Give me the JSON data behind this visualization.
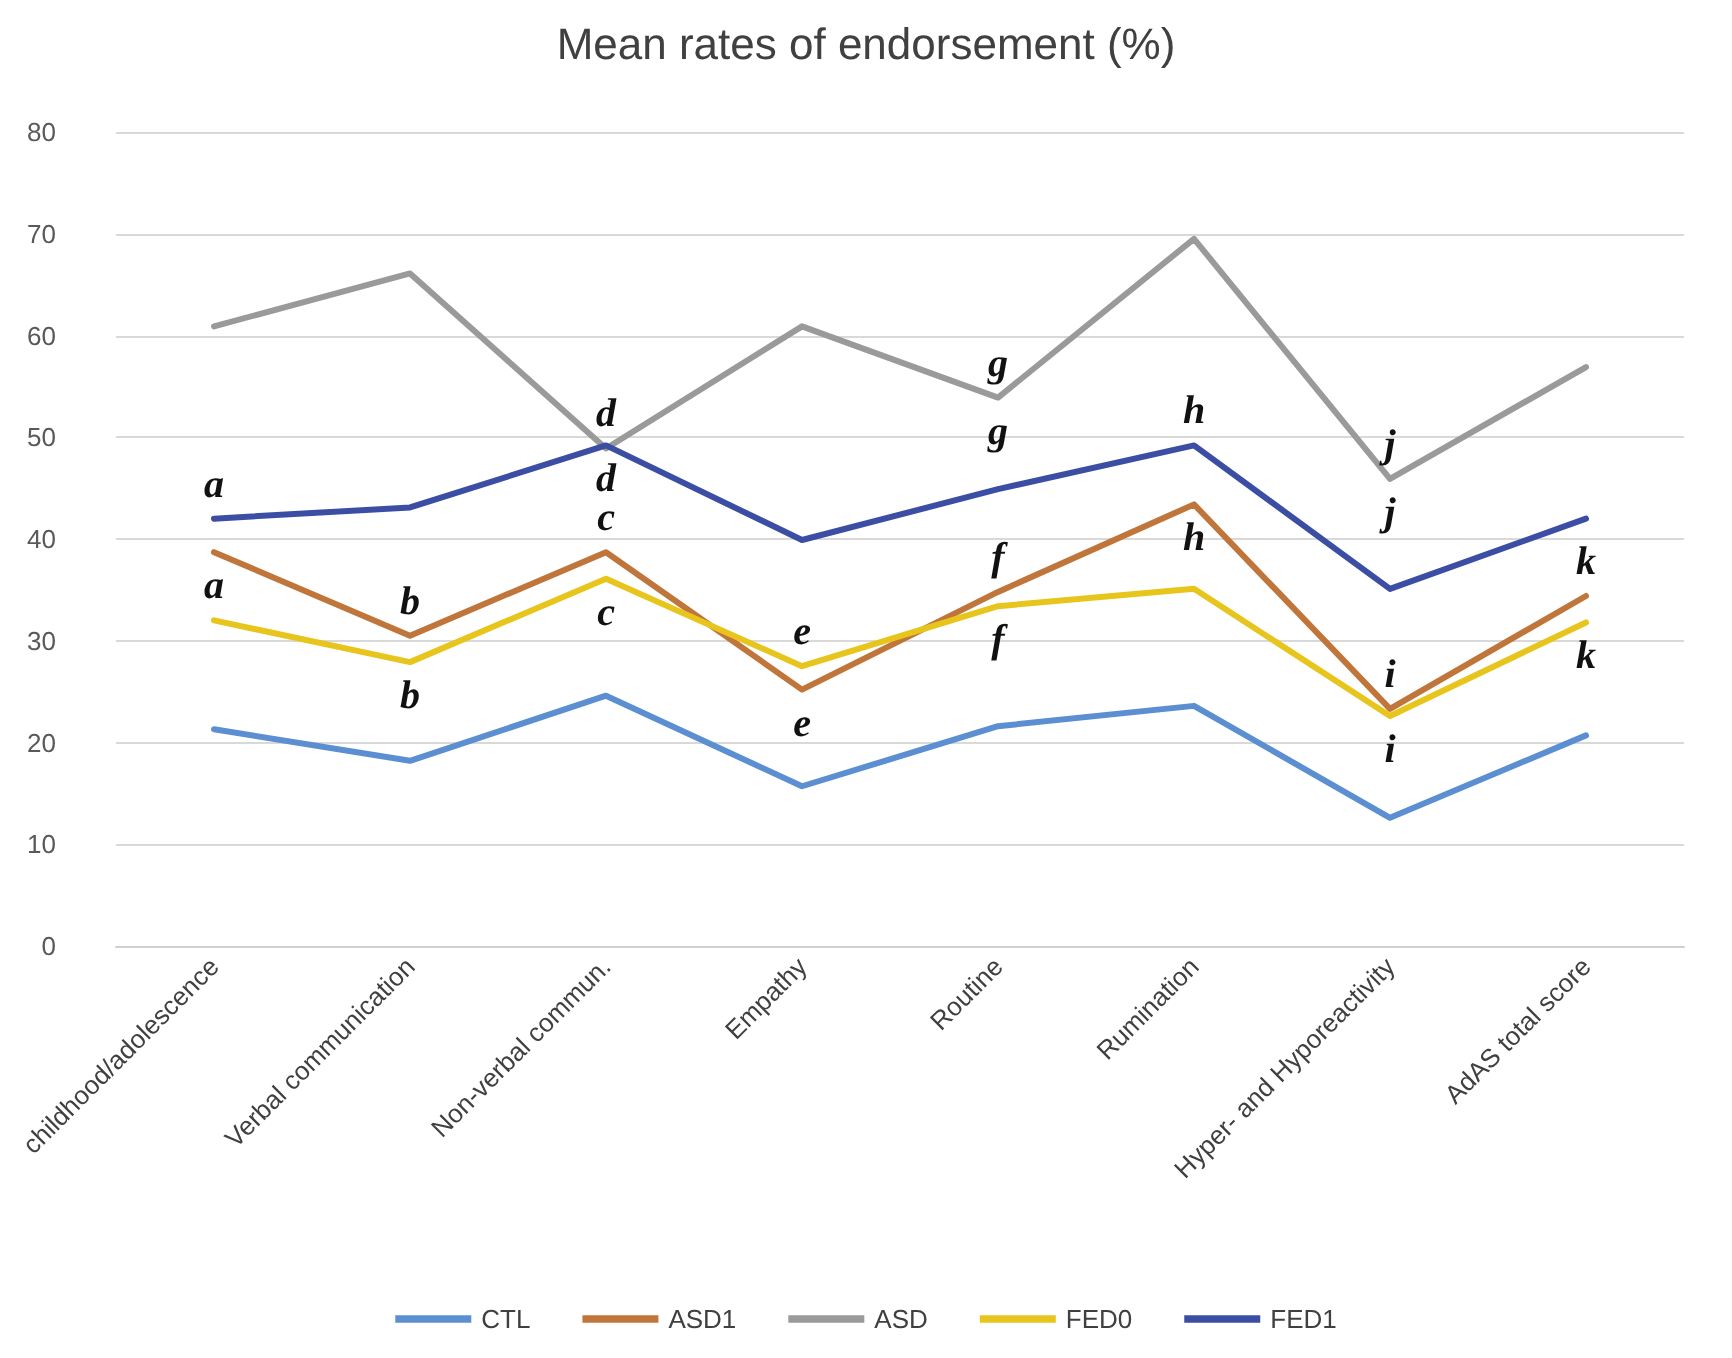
{
  "chart_data": {
    "type": "line",
    "title": "Mean rates of endorsement (%)",
    "categories": [
      "childhood/adolescence",
      "Verbal communication",
      "Non-verbal commun.",
      "Empathy",
      "Routine",
      "Rumination",
      "Hyper- and Hyporeactivity",
      "AdAS total score"
    ],
    "series": [
      {
        "name": "CTL",
        "color": "#5b8fd1",
        "values": [
          21.3,
          18.2,
          24.6,
          15.7,
          21.6,
          23.6,
          12.6,
          20.7
        ]
      },
      {
        "name": "ASD1",
        "color": "#c0763a",
        "values": [
          38.7,
          30.5,
          38.7,
          25.2,
          34.8,
          43.4,
          23.3,
          34.4
        ]
      },
      {
        "name": "ASD",
        "color": "#9a9a9a",
        "values": [
          60.9,
          66.1,
          48.9,
          60.9,
          53.9,
          69.5,
          45.9,
          56.9
        ]
      },
      {
        "name": "FED0",
        "color": "#e8c51c",
        "values": [
          32.0,
          27.9,
          36.1,
          27.5,
          33.4,
          35.1,
          22.6,
          31.8
        ]
      },
      {
        "name": "FED1",
        "color": "#3b4ea3",
        "values": [
          42.0,
          43.1,
          49.2,
          39.9,
          44.9,
          49.2,
          35.1,
          42.0
        ]
      }
    ],
    "ylim": [
      0,
      80
    ],
    "yticks": [
      0,
      10,
      20,
      30,
      40,
      50,
      60,
      70,
      80
    ],
    "grid": "y",
    "legend": "bottom",
    "marker": "none",
    "line_style": "solid",
    "annotations": [
      {
        "text": "a",
        "x": "childhood/adolescence",
        "y": 42.0
      },
      {
        "text": "a",
        "x": "childhood/adolescence",
        "y": 38.7
      },
      {
        "text": "b",
        "x": "Verbal communication",
        "y": 30.5
      },
      {
        "text": "b",
        "x": "Verbal communication",
        "y": 27.9
      },
      {
        "text": "d",
        "x": "Non-verbal commun.",
        "y": 48.9
      },
      {
        "text": "d",
        "x": "Non-verbal commun.",
        "y": 49.2
      },
      {
        "text": "c",
        "x": "Non-verbal commun.",
        "y": 38.7
      },
      {
        "text": "c",
        "x": "Non-verbal commun.",
        "y": 36.1
      },
      {
        "text": "e",
        "x": "Empathy",
        "y": 27.5
      },
      {
        "text": "e",
        "x": "Empathy",
        "y": 25.2
      },
      {
        "text": "g",
        "x": "Routine",
        "y": 53.9
      },
      {
        "text": "g",
        "x": "Routine",
        "y": 53.9
      },
      {
        "text": "f",
        "x": "Routine",
        "y": 34.8
      },
      {
        "text": "f",
        "x": "Routine",
        "y": 33.4
      },
      {
        "text": "h",
        "x": "Rumination",
        "y": 49.2
      },
      {
        "text": "h",
        "x": "Rumination",
        "y": 43.4
      },
      {
        "text": "j",
        "x": "Hyper- and Hyporeactivity",
        "y": 45.9
      },
      {
        "text": "j",
        "x": "Hyper- and Hyporeactivity",
        "y": 45.9
      },
      {
        "text": "i",
        "x": "Hyper- and Hyporeactivity",
        "y": 23.3
      },
      {
        "text": "i",
        "x": "Hyper- and Hyporeactivity",
        "y": 22.6
      },
      {
        "text": "k",
        "x": "AdAS total score",
        "y": 34.4
      },
      {
        "text": "k",
        "x": "AdAS total score",
        "y": 31.8
      }
    ]
  }
}
